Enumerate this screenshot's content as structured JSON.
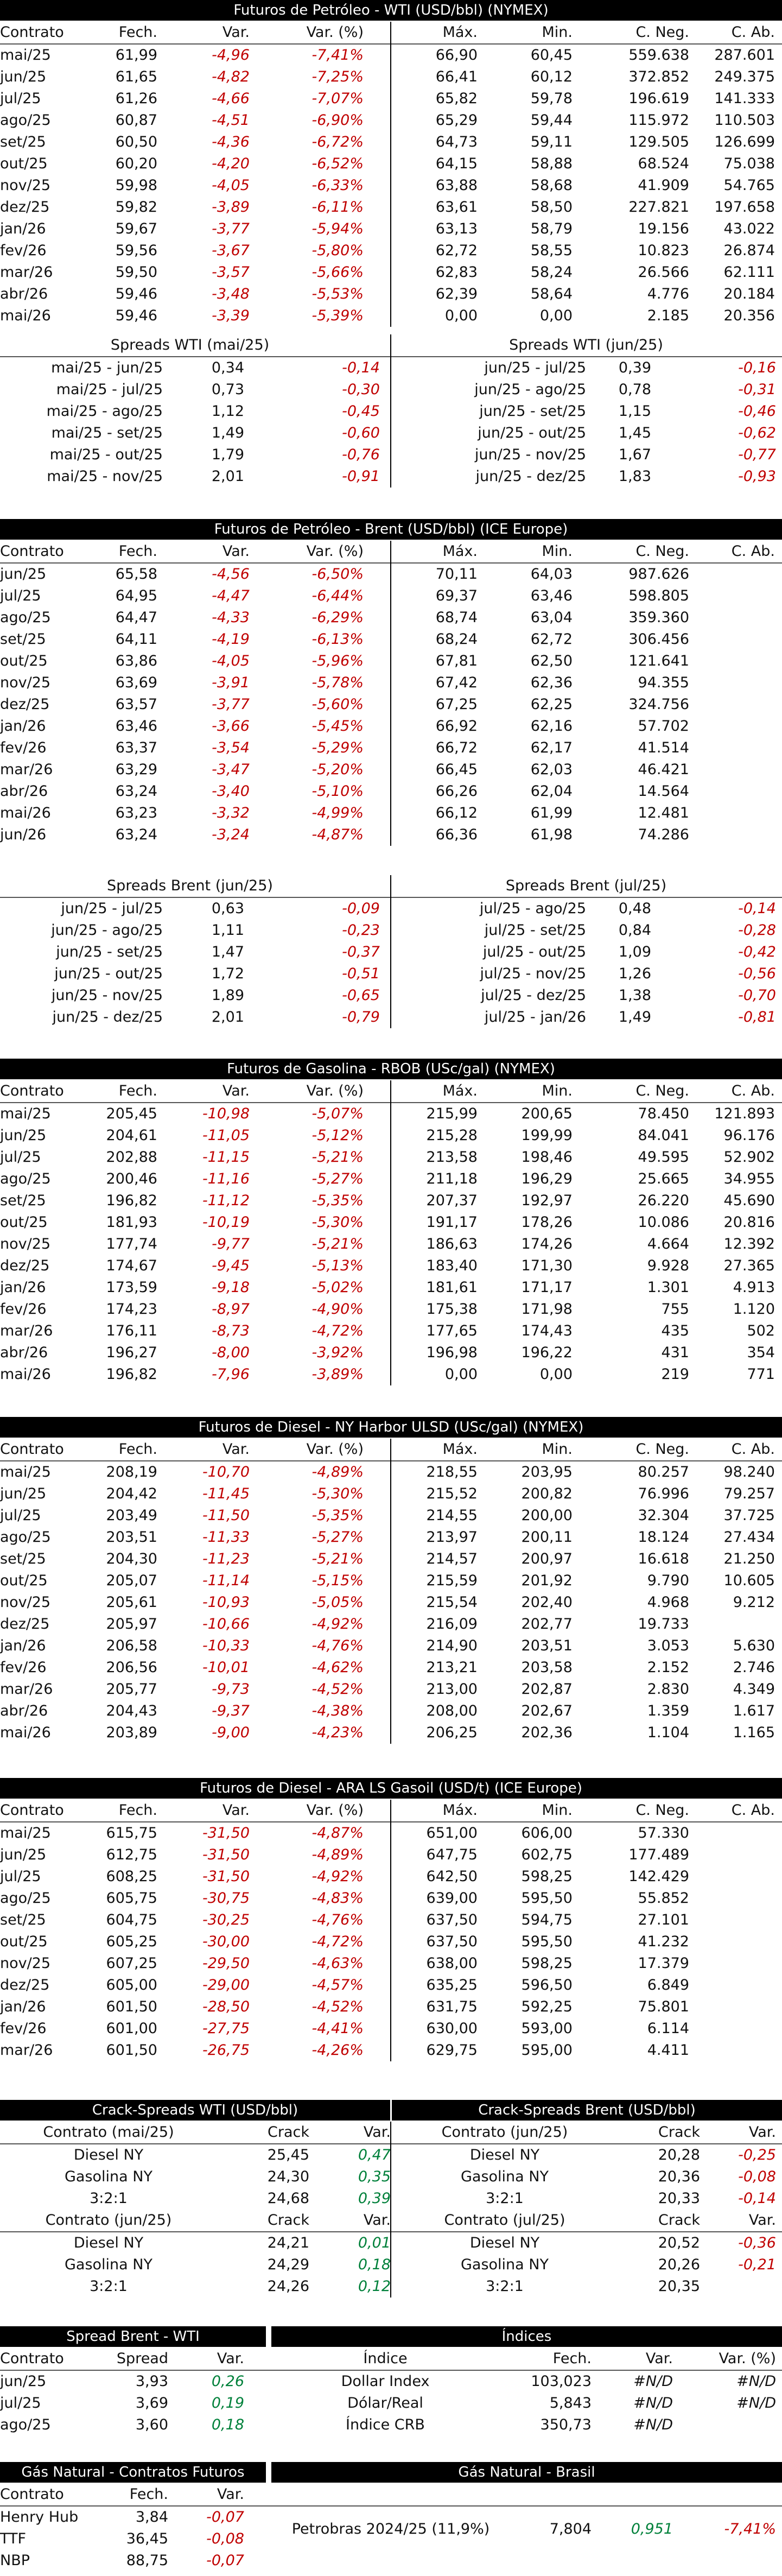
{
  "wti": {
    "title": "Futuros de Petróleo - WTI (USD/bbl) (NYMEX)",
    "headers": [
      "Contrato",
      "Fech.",
      "Var.",
      "Var. (%)",
      "Máx.",
      "Min.",
      "C. Neg.",
      "C. Ab."
    ],
    "rows": [
      [
        "mai/25",
        "61,99",
        "-4,96",
        "-7,41%",
        "66,90",
        "60,45",
        "559.638",
        "287.601"
      ],
      [
        "jun/25",
        "61,65",
        "-4,82",
        "-7,25%",
        "66,41",
        "60,12",
        "372.852",
        "249.375"
      ],
      [
        "jul/25",
        "61,26",
        "-4,66",
        "-7,07%",
        "65,82",
        "59,78",
        "196.619",
        "141.333"
      ],
      [
        "ago/25",
        "60,87",
        "-4,51",
        "-6,90%",
        "65,29",
        "59,44",
        "115.972",
        "110.503"
      ],
      [
        "set/25",
        "60,50",
        "-4,36",
        "-6,72%",
        "64,73",
        "59,11",
        "129.505",
        "126.699"
      ],
      [
        "out/25",
        "60,20",
        "-4,20",
        "-6,52%",
        "64,15",
        "58,88",
        "68.524",
        "75.038"
      ],
      [
        "nov/25",
        "59,98",
        "-4,05",
        "-6,33%",
        "63,88",
        "58,68",
        "41.909",
        "54.765"
      ],
      [
        "dez/25",
        "59,82",
        "-3,89",
        "-6,11%",
        "63,61",
        "58,50",
        "227.821",
        "197.658"
      ],
      [
        "jan/26",
        "59,67",
        "-3,77",
        "-5,94%",
        "63,13",
        "58,79",
        "19.156",
        "43.022"
      ],
      [
        "fev/26",
        "59,56",
        "-3,67",
        "-5,80%",
        "62,72",
        "58,55",
        "10.823",
        "26.874"
      ],
      [
        "mar/26",
        "59,50",
        "-3,57",
        "-5,66%",
        "62,83",
        "58,24",
        "26.566",
        "62.111"
      ],
      [
        "abr/26",
        "59,46",
        "-3,48",
        "-5,53%",
        "62,39",
        "58,64",
        "4.776",
        "20.184"
      ],
      [
        "mai/26",
        "59,46",
        "-3,39",
        "-5,39%",
        "0,00",
        "0,00",
        "2.185",
        "20.356"
      ]
    ],
    "spreads_left_title": "Spreads WTI (mai/25)",
    "spreads_right_title": "Spreads WTI (jun/25)",
    "spreads_left": [
      [
        "mai/25 - jun/25",
        "0,34",
        "-0,14"
      ],
      [
        "mai/25 - jul/25",
        "0,73",
        "-0,30"
      ],
      [
        "mai/25 - ago/25",
        "1,12",
        "-0,45"
      ],
      [
        "mai/25 - set/25",
        "1,49",
        "-0,60"
      ],
      [
        "mai/25 - out/25",
        "1,79",
        "-0,76"
      ],
      [
        "mai/25 - nov/25",
        "2,01",
        "-0,91"
      ]
    ],
    "spreads_right": [
      [
        "jun/25 - jul/25",
        "0,39",
        "-0,16"
      ],
      [
        "jun/25 - ago/25",
        "0,78",
        "-0,31"
      ],
      [
        "jun/25 - set/25",
        "1,15",
        "-0,46"
      ],
      [
        "jun/25 - out/25",
        "1,45",
        "-0,62"
      ],
      [
        "jun/25 - nov/25",
        "1,67",
        "-0,77"
      ],
      [
        "jun/25 - dez/25",
        "1,83",
        "-0,93"
      ]
    ]
  },
  "brent": {
    "title": "Futuros de Petróleo - Brent (USD/bbl) (ICE Europe)",
    "headers": [
      "Contrato",
      "Fech.",
      "Var.",
      "Var. (%)",
      "Máx.",
      "Min.",
      "C. Neg.",
      "C. Ab."
    ],
    "rows": [
      [
        "jun/25",
        "65,58",
        "-4,56",
        "-6,50%",
        "70,11",
        "64,03",
        "987.626",
        ""
      ],
      [
        "jul/25",
        "64,95",
        "-4,47",
        "-6,44%",
        "69,37",
        "63,46",
        "598.805",
        ""
      ],
      [
        "ago/25",
        "64,47",
        "-4,33",
        "-6,29%",
        "68,74",
        "63,04",
        "359.360",
        ""
      ],
      [
        "set/25",
        "64,11",
        "-4,19",
        "-6,13%",
        "68,24",
        "62,72",
        "306.456",
        ""
      ],
      [
        "out/25",
        "63,86",
        "-4,05",
        "-5,96%",
        "67,81",
        "62,50",
        "121.641",
        ""
      ],
      [
        "nov/25",
        "63,69",
        "-3,91",
        "-5,78%",
        "67,42",
        "62,36",
        "94.355",
        ""
      ],
      [
        "dez/25",
        "63,57",
        "-3,77",
        "-5,60%",
        "67,25",
        "62,25",
        "324.756",
        ""
      ],
      [
        "jan/26",
        "63,46",
        "-3,66",
        "-5,45%",
        "66,92",
        "62,16",
        "57.702",
        ""
      ],
      [
        "fev/26",
        "63,37",
        "-3,54",
        "-5,29%",
        "66,72",
        "62,17",
        "41.514",
        ""
      ],
      [
        "mar/26",
        "63,29",
        "-3,47",
        "-5,20%",
        "66,45",
        "62,03",
        "46.421",
        ""
      ],
      [
        "abr/26",
        "63,24",
        "-3,40",
        "-5,10%",
        "66,26",
        "62,04",
        "14.564",
        ""
      ],
      [
        "mai/26",
        "63,23",
        "-3,32",
        "-4,99%",
        "66,12",
        "61,99",
        "12.481",
        ""
      ],
      [
        "jun/26",
        "63,24",
        "-3,24",
        "-4,87%",
        "66,36",
        "61,98",
        "74.286",
        ""
      ]
    ],
    "spreads_left_title": "Spreads Brent (jun/25)",
    "spreads_right_title": "Spreads Brent (jul/25)",
    "spreads_left": [
      [
        "jun/25 - jul/25",
        "0,63",
        "-0,09"
      ],
      [
        "jun/25 - ago/25",
        "1,11",
        "-0,23"
      ],
      [
        "jun/25 - set/25",
        "1,47",
        "-0,37"
      ],
      [
        "jun/25 - out/25",
        "1,72",
        "-0,51"
      ],
      [
        "jun/25 - nov/25",
        "1,89",
        "-0,65"
      ],
      [
        "jun/25 - dez/25",
        "2,01",
        "-0,79"
      ]
    ],
    "spreads_right": [
      [
        "jul/25 - ago/25",
        "0,48",
        "-0,14"
      ],
      [
        "jul/25 - set/25",
        "0,84",
        "-0,28"
      ],
      [
        "jul/25 - out/25",
        "1,09",
        "-0,42"
      ],
      [
        "jul/25 - nov/25",
        "1,26",
        "-0,56"
      ],
      [
        "jul/25 - dez/25",
        "1,38",
        "-0,70"
      ],
      [
        "jul/25 - jan/26",
        "1,49",
        "-0,81"
      ]
    ]
  },
  "rbob": {
    "title": "Futuros de Gasolina - RBOB (USc/gal) (NYMEX)",
    "headers": [
      "Contrato",
      "Fech.",
      "Var.",
      "Var. (%)",
      "Máx.",
      "Min.",
      "C. Neg.",
      "C. Ab."
    ],
    "rows": [
      [
        "mai/25",
        "205,45",
        "-10,98",
        "-5,07%",
        "215,99",
        "200,65",
        "78.450",
        "121.893"
      ],
      [
        "jun/25",
        "204,61",
        "-11,05",
        "-5,12%",
        "215,28",
        "199,99",
        "84.041",
        "96.176"
      ],
      [
        "jul/25",
        "202,88",
        "-11,15",
        "-5,21%",
        "213,58",
        "198,46",
        "49.595",
        "52.902"
      ],
      [
        "ago/25",
        "200,46",
        "-11,16",
        "-5,27%",
        "211,18",
        "196,29",
        "25.665",
        "34.955"
      ],
      [
        "set/25",
        "196,82",
        "-11,12",
        "-5,35%",
        "207,37",
        "192,97",
        "26.220",
        "45.690"
      ],
      [
        "out/25",
        "181,93",
        "-10,19",
        "-5,30%",
        "191,17",
        "178,26",
        "10.086",
        "20.816"
      ],
      [
        "nov/25",
        "177,74",
        "-9,77",
        "-5,21%",
        "186,63",
        "174,26",
        "4.664",
        "12.392"
      ],
      [
        "dez/25",
        "174,67",
        "-9,45",
        "-5,13%",
        "183,40",
        "171,30",
        "9.928",
        "27.365"
      ],
      [
        "jan/26",
        "173,59",
        "-9,18",
        "-5,02%",
        "181,61",
        "171,17",
        "1.301",
        "4.913"
      ],
      [
        "fev/26",
        "174,23",
        "-8,97",
        "-4,90%",
        "175,38",
        "171,98",
        "755",
        "1.120"
      ],
      [
        "mar/26",
        "176,11",
        "-8,73",
        "-4,72%",
        "177,65",
        "174,43",
        "435",
        "502"
      ],
      [
        "abr/26",
        "196,27",
        "-8,00",
        "-3,92%",
        "196,98",
        "196,22",
        "431",
        "354"
      ],
      [
        "mai/26",
        "196,82",
        "-7,96",
        "-3,89%",
        "0,00",
        "0,00",
        "219",
        "771"
      ]
    ]
  },
  "ulsd": {
    "title": "Futuros de Diesel - NY Harbor ULSD (USc/gal) (NYMEX)",
    "headers": [
      "Contrato",
      "Fech.",
      "Var.",
      "Var. (%)",
      "Máx.",
      "Min.",
      "C. Neg.",
      "C. Ab."
    ],
    "rows": [
      [
        "mai/25",
        "208,19",
        "-10,70",
        "-4,89%",
        "218,55",
        "203,95",
        "80.257",
        "98.240"
      ],
      [
        "jun/25",
        "204,42",
        "-11,45",
        "-5,30%",
        "215,52",
        "200,82",
        "76.996",
        "79.257"
      ],
      [
        "jul/25",
        "203,49",
        "-11,50",
        "-5,35%",
        "214,55",
        "200,00",
        "32.304",
        "37.725"
      ],
      [
        "ago/25",
        "203,51",
        "-11,33",
        "-5,27%",
        "213,97",
        "200,11",
        "18.124",
        "27.434"
      ],
      [
        "set/25",
        "204,30",
        "-11,23",
        "-5,21%",
        "214,57",
        "200,97",
        "16.618",
        "21.250"
      ],
      [
        "out/25",
        "205,07",
        "-11,14",
        "-5,15%",
        "215,59",
        "201,92",
        "9.790",
        "10.605"
      ],
      [
        "nov/25",
        "205,61",
        "-10,93",
        "-5,05%",
        "215,54",
        "202,40",
        "4.968",
        "9.212"
      ],
      [
        "dez/25",
        "205,97",
        "-10,66",
        "-4,92%",
        "216,09",
        "202,77",
        "19.733",
        ""
      ],
      [
        "jan/26",
        "206,58",
        "-10,33",
        "-4,76%",
        "214,90",
        "203,51",
        "3.053",
        "5.630"
      ],
      [
        "fev/26",
        "206,56",
        "-10,01",
        "-4,62%",
        "213,21",
        "203,58",
        "2.152",
        "2.746"
      ],
      [
        "mar/26",
        "205,77",
        "-9,73",
        "-4,52%",
        "213,00",
        "202,87",
        "2.830",
        "4.349"
      ],
      [
        "abr/26",
        "204,43",
        "-9,37",
        "-4,38%",
        "208,00",
        "202,67",
        "1.359",
        "1.617"
      ],
      [
        "mai/26",
        "203,89",
        "-9,00",
        "-4,23%",
        "206,25",
        "202,36",
        "1.104",
        "1.165"
      ]
    ]
  },
  "gasoil": {
    "title": "Futuros de Diesel - ARA LS Gasoil (USD/t) (ICE Europe)",
    "headers": [
      "Contrato",
      "Fech.",
      "Var.",
      "Var. (%)",
      "Máx.",
      "Min.",
      "C. Neg.",
      "C. Ab."
    ],
    "rows": [
      [
        "mai/25",
        "615,75",
        "-31,50",
        "-4,87%",
        "651,00",
        "606,00",
        "57.330",
        ""
      ],
      [
        "jun/25",
        "612,75",
        "-31,50",
        "-4,89%",
        "647,75",
        "602,75",
        "177.489",
        ""
      ],
      [
        "jul/25",
        "608,25",
        "-31,50",
        "-4,92%",
        "642,50",
        "598,25",
        "142.429",
        ""
      ],
      [
        "ago/25",
        "605,75",
        "-30,75",
        "-4,83%",
        "639,00",
        "595,50",
        "55.852",
        ""
      ],
      [
        "set/25",
        "604,75",
        "-30,25",
        "-4,76%",
        "637,50",
        "594,75",
        "27.101",
        ""
      ],
      [
        "out/25",
        "605,25",
        "-30,00",
        "-4,72%",
        "637,50",
        "595,50",
        "41.232",
        ""
      ],
      [
        "nov/25",
        "607,25",
        "-29,50",
        "-4,63%",
        "638,00",
        "598,25",
        "17.379",
        ""
      ],
      [
        "dez/25",
        "605,00",
        "-29,00",
        "-4,57%",
        "635,25",
        "596,50",
        "6.849",
        ""
      ],
      [
        "jan/26",
        "601,50",
        "-28,50",
        "-4,52%",
        "631,75",
        "592,25",
        "75.801",
        ""
      ],
      [
        "fev/26",
        "601,00",
        "-27,75",
        "-4,41%",
        "630,00",
        "593,00",
        "6.114",
        ""
      ],
      [
        "mar/26",
        "601,50",
        "-26,75",
        "-4,26%",
        "629,75",
        "595,00",
        "4.411",
        ""
      ]
    ]
  },
  "crack": {
    "wti_title": "Crack-Spreads WTI (USD/bbl)",
    "brent_title": "Crack-Spreads Brent (USD/bbl)",
    "headers_wti_1": [
      "Contrato (mai/25)",
      "Crack",
      "Var."
    ],
    "headers_brent_1": [
      "Contrato (jun/25)",
      "Crack",
      "Var."
    ],
    "headers_wti_2": [
      "Contrato (jun/25)",
      "Crack",
      "Var."
    ],
    "headers_brent_2": [
      "Contrato (jul/25)",
      "Crack",
      "Var."
    ],
    "wti_1": [
      [
        "Diesel NY",
        "25,45",
        "0,47"
      ],
      [
        "Gasolina NY",
        "24,30",
        "0,35"
      ],
      [
        "3:2:1",
        "24,68",
        "0,39"
      ]
    ],
    "brent_1": [
      [
        "Diesel NY",
        "20,28",
        "-0,25"
      ],
      [
        "Gasolina NY",
        "20,36",
        "-0,08"
      ],
      [
        "3:2:1",
        "20,33",
        "-0,14"
      ]
    ],
    "wti_2": [
      [
        "Diesel NY",
        "24,21",
        "0,01"
      ],
      [
        "Gasolina NY",
        "24,29",
        "0,18"
      ],
      [
        "3:2:1",
        "24,26",
        "0,12"
      ]
    ],
    "brent_2": [
      [
        "Diesel NY",
        "20,52",
        "-0,36"
      ],
      [
        "Gasolina NY",
        "20,26",
        "-0,21"
      ],
      [
        "3:2:1",
        "20,35",
        ""
      ]
    ]
  },
  "spread_bw": {
    "title": "Spread Brent - WTI",
    "headers": [
      "Contrato",
      "Spread",
      "Var."
    ],
    "rows": [
      [
        "jun/25",
        "3,93",
        "0,26"
      ],
      [
        "jul/25",
        "3,69",
        "0,19"
      ],
      [
        "ago/25",
        "3,60",
        "0,18"
      ]
    ]
  },
  "indices": {
    "title": "Índices",
    "headers": [
      "Índice",
      "Fech.",
      "Var.",
      "Var. (%)"
    ],
    "rows": [
      [
        "Dollar Index",
        "103,023",
        "#N/D",
        "#N/D"
      ],
      [
        "Dólar/Real",
        "5,843",
        "#N/D",
        "#N/D"
      ],
      [
        "Índice CRB",
        "350,73",
        "#N/D",
        ""
      ]
    ]
  },
  "gas": {
    "title": "Gás Natural - Contratos Futuros",
    "headers": [
      "Contrato",
      "Fech.",
      "Var."
    ],
    "rows": [
      [
        "Henry Hub",
        "3,84",
        "-0,07"
      ],
      [
        "TTF",
        "36,45",
        "-0,08"
      ],
      [
        "NBP",
        "88,75",
        "-0,07"
      ]
    ]
  },
  "gas_br": {
    "title": "Gás Natural - Brasil",
    "row": [
      "Petrobras 2024/25 (11,9%)",
      "7,804",
      "0,951",
      "-7,41%"
    ]
  }
}
